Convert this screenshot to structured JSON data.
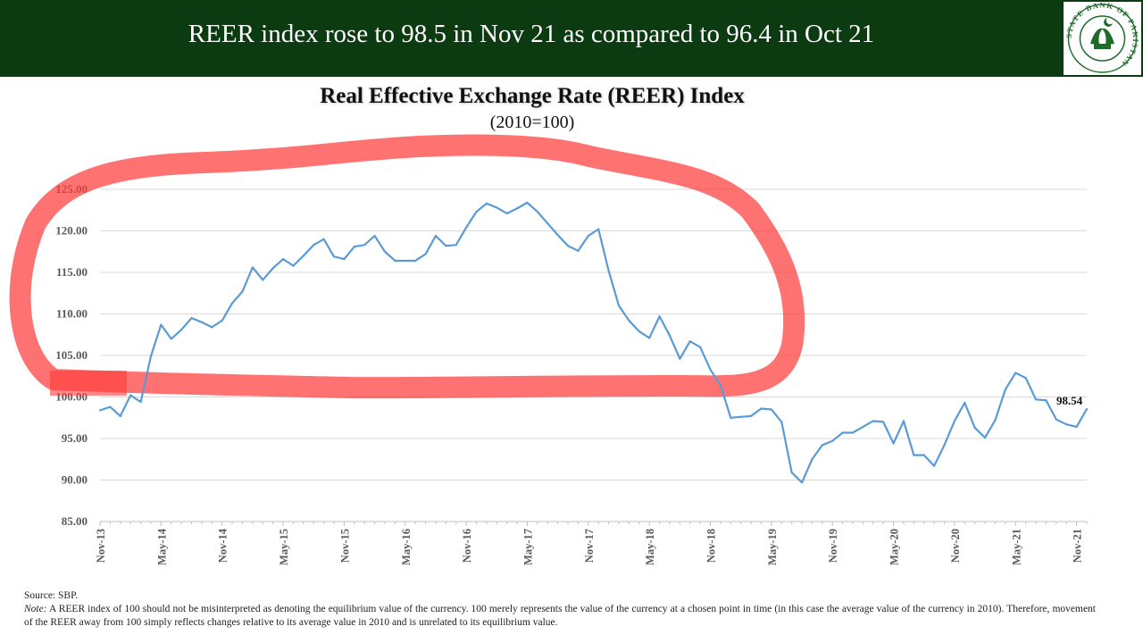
{
  "header": {
    "title": "REER index rose to 98.5 in Nov 21 as compared to 96.4 in Oct 21",
    "logo_text": "STATE BANK OF PAKISTAN"
  },
  "footer": {
    "source": "Source: SBP.",
    "note_label": "Note:",
    "note": "A REER index of 100 should not be misinterpreted  as denoting the equilibrium value of the currency. 100 merely represents the value of the currency at a chosen point in time (in this case the average value of the currency in 2010). Therefore, movement of the REER away from 100 simply reflects changes relative to its average value in 2010 and is unrelated to its equilibrium value."
  },
  "colors": {
    "banner": "#0c3b12",
    "line": "#5b9bd5",
    "highlight": "#ff3b3b"
  },
  "chart_data": {
    "type": "line",
    "title": "Real Effective Exchange Rate (REER) Index",
    "subtitle": "(2010=100)",
    "xlabel": "",
    "ylabel": "",
    "ylim": [
      85,
      125
    ],
    "yticks": [
      "125.00",
      "120.00",
      "115.00",
      "110.00",
      "105.00",
      "100.00",
      "95.00",
      "90.00",
      "85.00"
    ],
    "grid": true,
    "x_start": "Nov-13",
    "x_end": "Nov-21",
    "xtick_labels": [
      "Nov-13",
      "May-14",
      "Nov-14",
      "May-15",
      "Nov-15",
      "May-16",
      "Nov-16",
      "May-17",
      "Nov-17",
      "May-18",
      "Nov-18",
      "May-19",
      "Nov-19",
      "May-20",
      "Nov-20",
      "May-21",
      "Nov-21"
    ],
    "series": [
      {
        "values": [
          98.4,
          98.8,
          97.7,
          100.2,
          99.4,
          104.9,
          108.7,
          107.0,
          108.1,
          109.5,
          109.0,
          108.4,
          109.2,
          111.3,
          112.7,
          115.6,
          114.1,
          115.5,
          116.6,
          115.8,
          117.0,
          118.3,
          119.0,
          116.9,
          116.6,
          118.1,
          118.3,
          119.4,
          117.5,
          116.4,
          116.4,
          116.4,
          117.2,
          119.4,
          118.2,
          118.3,
          120.4,
          122.3,
          123.3,
          122.8,
          122.1,
          122.7,
          123.4,
          122.3,
          120.9,
          119.5,
          118.2,
          117.6,
          119.4,
          120.2,
          115.2,
          111.0,
          109.2,
          107.9,
          107.1,
          109.7,
          107.4,
          104.6,
          106.7,
          106.0,
          103.3,
          101.4,
          97.5,
          97.6,
          97.7,
          98.6,
          98.5,
          97.0,
          90.9,
          89.7,
          92.5,
          94.2,
          94.7,
          95.7,
          95.7,
          96.4,
          97.1,
          97.0,
          94.4,
          97.1,
          93.0,
          93.0,
          91.7,
          94.2,
          97.1,
          99.3,
          96.3,
          95.1,
          97.2,
          100.9,
          102.9,
          102.3,
          99.7,
          99.6,
          97.3,
          96.7,
          96.4,
          98.54
        ]
      }
    ],
    "annotations": [
      {
        "label": "98.54",
        "at": "Nov-21"
      }
    ]
  }
}
